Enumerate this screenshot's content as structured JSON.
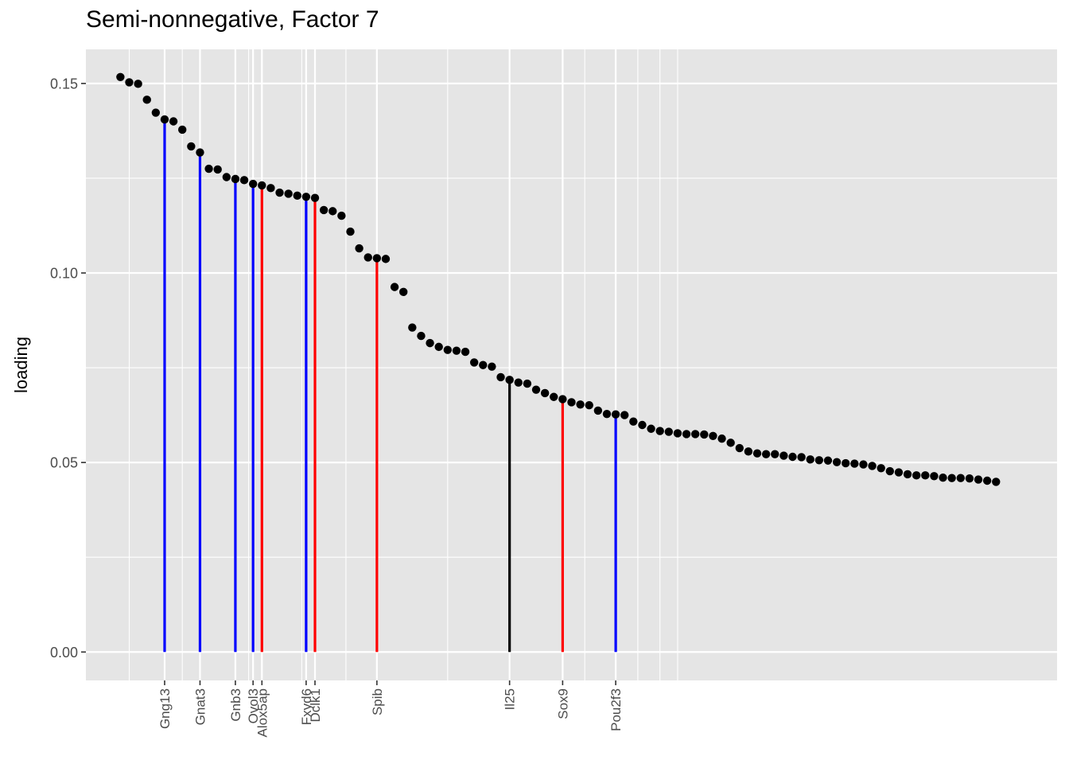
{
  "chart_data": {
    "type": "scatter",
    "title": "Semi-nonnegative, Factor 7",
    "xlabel": "",
    "ylabel": "loading",
    "ylim": [
      -0.0075,
      0.159
    ],
    "xlim": [
      -3.9,
      105.9
    ],
    "grid": true,
    "legend": "none",
    "y_ticks": [
      "0.00",
      "0.05",
      "0.10",
      "0.15"
    ],
    "y_tick_values": [
      0.0,
      0.05,
      0.1,
      0.15
    ],
    "points": [
      0.1517,
      0.1503,
      0.1499,
      0.1457,
      0.1423,
      0.1405,
      0.14,
      0.1378,
      0.1334,
      0.1318,
      0.1275,
      0.1273,
      0.1253,
      0.1248,
      0.1245,
      0.1235,
      0.1231,
      0.1224,
      0.1212,
      0.1209,
      0.1204,
      0.1201,
      0.1198,
      0.1166,
      0.1163,
      0.1151,
      0.1109,
      0.1065,
      0.1041,
      0.1039,
      0.1037,
      0.0963,
      0.095,
      0.0856,
      0.0834,
      0.0815,
      0.0805,
      0.0797,
      0.0795,
      0.0792,
      0.0764,
      0.0757,
      0.0753,
      0.0725,
      0.0718,
      0.0711,
      0.0708,
      0.0692,
      0.0683,
      0.0673,
      0.0667,
      0.0659,
      0.0653,
      0.0651,
      0.0637,
      0.0628,
      0.0627,
      0.0625,
      0.0608,
      0.0599,
      0.0589,
      0.0583,
      0.0581,
      0.0577,
      0.0575,
      0.0575,
      0.0574,
      0.057,
      0.0563,
      0.0552,
      0.0538,
      0.0529,
      0.0524,
      0.0522,
      0.0522,
      0.0518,
      0.0515,
      0.0514,
      0.0508,
      0.0506,
      0.0505,
      0.0501,
      0.0498,
      0.0497,
      0.0495,
      0.0491,
      0.0485,
      0.0477,
      0.0474,
      0.0469,
      0.0466,
      0.0466,
      0.0464,
      0.046,
      0.0459,
      0.0459,
      0.0458,
      0.0455,
      0.0452,
      0.0449
    ],
    "highlights": [
      {
        "gene": "Gng13",
        "index": 5,
        "color": "#0000ff"
      },
      {
        "gene": "Gnat3",
        "index": 9,
        "color": "#0000ff"
      },
      {
        "gene": "Gnb3",
        "index": 13,
        "color": "#0000ff"
      },
      {
        "gene": "Ovol3",
        "index": 15,
        "color": "#0000ff"
      },
      {
        "gene": "Alox5ap",
        "index": 16,
        "color": "#ff0000"
      },
      {
        "gene": "Fxyd6",
        "index": 21,
        "color": "#0000ff"
      },
      {
        "gene": "Dclk1",
        "index": 22,
        "color": "#ff0000"
      },
      {
        "gene": "Spib",
        "index": 29,
        "color": "#ff0000"
      },
      {
        "gene": "Il25",
        "index": 44,
        "color": "#000000"
      },
      {
        "gene": "Sox9",
        "index": 50,
        "color": "#ff0000"
      },
      {
        "gene": "Pou2f3",
        "index": 56,
        "color": "#0000ff"
      }
    ],
    "minor_x_grid": [
      1,
      7,
      14.5,
      20.5,
      25.5,
      37,
      52.5,
      58.5,
      61,
      63
    ],
    "panel_background": "#e5e5e5",
    "grid_color": "#ffffff",
    "point_color": "#000000"
  }
}
